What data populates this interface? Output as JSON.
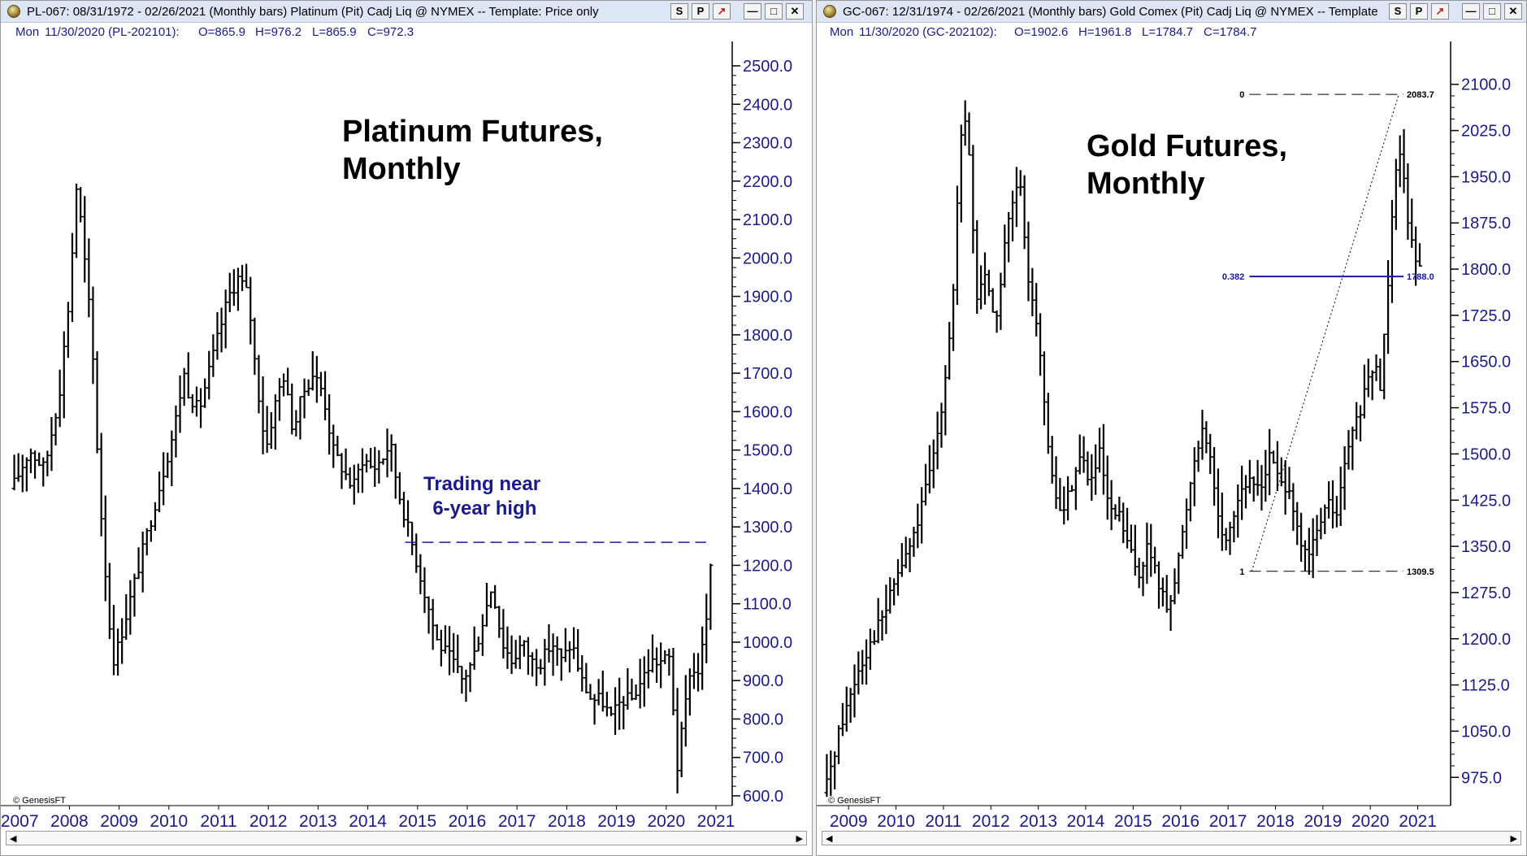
{
  "left": {
    "window_title": "PL-067:  08/31/1972 - 02/26/2021  (Monthly bars)   Platinum (Pit) Cadj Liq @ NYMEX  --  Template: Price only",
    "info": {
      "day": "Mon",
      "bar": "11/30/2020 (PL-202101):",
      "open": "O=865.9",
      "high": "H=976.2",
      "low": "L=865.9",
      "close": "C=972.3"
    },
    "copyright": "© GenesisFT"
  },
  "right": {
    "window_title": "GC-067:  12/31/1974 - 02/26/2021  (Monthly bars)   Gold Comex (Pit) Cadj Liq @ NYMEX  --  Template",
    "info": {
      "day": "Mon",
      "bar": "11/30/2020 (GC-202102):",
      "open": "O=1902.6",
      "high": "H=1961.8",
      "low": "L=1784.7",
      "close": "C=1784.7"
    },
    "copyright": "© GenesisFT"
  },
  "buttons": {
    "s": "S",
    "p": "P",
    "flag": "↗",
    "min": "—",
    "max": "□",
    "close": "✕"
  },
  "chart_data": [
    {
      "type": "ohlc",
      "title": "Platinum Futures,\nMonthly",
      "annotation": "Trading near\n 6-year high",
      "ylim": [
        600,
        2500
      ],
      "y_ticks": [
        600,
        700,
        800,
        900,
        1000,
        1100,
        1200,
        1300,
        1400,
        1500,
        1600,
        1700,
        1800,
        1900,
        2000,
        2100,
        2200,
        2300,
        2400,
        2500
      ],
      "y_tick_labels": [
        "600.0",
        "700.0",
        "800.0",
        "900.0",
        "1000.0",
        "1100.0",
        "1200.0",
        "1300.0",
        "1400.0",
        "1500.0",
        "1600.0",
        "1700.0",
        "1800.0",
        "1900.0",
        "2000.0",
        "2100.0",
        "2200.0",
        "2300.0",
        "2400.0",
        "2500.0"
      ],
      "x_labels": [
        "2007",
        "2008",
        "2009",
        "2010",
        "2011",
        "2012",
        "2013",
        "2014",
        "2015",
        "2016",
        "2017",
        "2018",
        "2019",
        "2020",
        "2021"
      ],
      "x_start": 2006.85,
      "x_end": 2021.0,
      "reference_line": {
        "value": 1260,
        "from": 2014.75,
        "to": 2020.8
      },
      "path": [
        [
          2006.85,
          1400
        ],
        [
          2007.2,
          1500
        ],
        [
          2007.5,
          1450
        ],
        [
          2007.8,
          1650
        ],
        [
          2008.0,
          1900
        ],
        [
          2008.15,
          2200
        ],
        [
          2008.3,
          2000
        ],
        [
          2008.45,
          1800
        ],
        [
          2008.6,
          1400
        ],
        [
          2008.8,
          1050
        ],
        [
          2008.9,
          950
        ],
        [
          2009.1,
          1050
        ],
        [
          2009.3,
          1150
        ],
        [
          2009.5,
          1250
        ],
        [
          2009.7,
          1350
        ],
        [
          2009.9,
          1450
        ],
        [
          2010.1,
          1550
        ],
        [
          2010.3,
          1700
        ],
        [
          2010.4,
          1650
        ],
        [
          2010.6,
          1600
        ],
        [
          2010.8,
          1700
        ],
        [
          2011.0,
          1800
        ],
        [
          2011.2,
          1900
        ],
        [
          2011.4,
          1950
        ],
        [
          2011.6,
          1900
        ],
        [
          2011.75,
          1700
        ],
        [
          2011.95,
          1500
        ],
        [
          2012.1,
          1600
        ],
        [
          2012.3,
          1700
        ],
        [
          2012.5,
          1550
        ],
        [
          2012.7,
          1650
        ],
        [
          2012.9,
          1700
        ],
        [
          2013.1,
          1650
        ],
        [
          2013.3,
          1500
        ],
        [
          2013.5,
          1450
        ],
        [
          2013.7,
          1400
        ],
        [
          2013.9,
          1480
        ],
        [
          2014.1,
          1450
        ],
        [
          2014.3,
          1480
        ],
        [
          2014.45,
          1520
        ],
        [
          2014.6,
          1400
        ],
        [
          2014.8,
          1300
        ],
        [
          2015.1,
          1150
        ],
        [
          2015.4,
          1000
        ],
        [
          2015.7,
          950
        ],
        [
          2015.9,
          900
        ],
        [
          2016.1,
          950
        ],
        [
          2016.3,
          1050
        ],
        [
          2016.5,
          1150
        ],
        [
          2016.7,
          1000
        ],
        [
          2016.9,
          950
        ],
        [
          2017.1,
          1000
        ],
        [
          2017.3,
          950
        ],
        [
          2017.5,
          950
        ],
        [
          2017.7,
          1000
        ],
        [
          2017.9,
          950
        ],
        [
          2018.1,
          1000
        ],
        [
          2018.3,
          900
        ],
        [
          2018.5,
          850
        ],
        [
          2018.7,
          850
        ],
        [
          2018.9,
          800
        ],
        [
          2019.1,
          850
        ],
        [
          2019.3,
          850
        ],
        [
          2019.5,
          900
        ],
        [
          2019.7,
          950
        ],
        [
          2019.9,
          950
        ],
        [
          2020.1,
          960
        ],
        [
          2020.2,
          650
        ],
        [
          2020.4,
          850
        ],
        [
          2020.5,
          950
        ],
        [
          2020.6,
          900
        ],
        [
          2020.75,
          1000
        ],
        [
          2020.85,
          1100
        ],
        [
          2020.9,
          1200
        ]
      ]
    },
    {
      "type": "ohlc",
      "title": "Gold Futures,\nMonthly",
      "ylim": [
        945,
        2130
      ],
      "y_ticks": [
        975,
        1050,
        1125,
        1200,
        1275,
        1350,
        1425,
        1500,
        1575,
        1650,
        1725,
        1800,
        1875,
        1950,
        2025,
        2100
      ],
      "y_tick_labels": [
        "975.0",
        "1050.0",
        "1125.0",
        "1200.0",
        "1275.0",
        "1350.0",
        "1425.0",
        "1500.0",
        "1575.0",
        "1650.0",
        "1725.0",
        "1800.0",
        "1875.0",
        "1950.0",
        "2025.0",
        "2100.0"
      ],
      "x_labels": [
        "2009",
        "2010",
        "2011",
        "2012",
        "2013",
        "2014",
        "2015",
        "2016",
        "2017",
        "2018",
        "2019",
        "2020",
        "2021"
      ],
      "x_start": 2008.5,
      "x_end": 2021.35,
      "fib": {
        "high": 2083.7,
        "high_label": "2083.7",
        "high_ratio": "0",
        "low": 1309.5,
        "low_label": "1309.5",
        "low_ratio": "1",
        "retrace": 1788.0,
        "retrace_label": "1788.0",
        "retrace_ratio": "0.382",
        "x_from": 2017.45,
        "x_to": 2020.7,
        "low_x": 2017.5,
        "high_x": 2020.6
      },
      "path": [
        [
          2008.5,
          950
        ],
        [
          2008.8,
          1050
        ],
        [
          2009.0,
          1100
        ],
        [
          2009.2,
          1150
        ],
        [
          2009.5,
          1200
        ],
        [
          2009.8,
          1250
        ],
        [
          2010.0,
          1300
        ],
        [
          2010.3,
          1350
        ],
        [
          2010.5,
          1400
        ],
        [
          2010.8,
          1500
        ],
        [
          2011.0,
          1600
        ],
        [
          2011.2,
          1750
        ],
        [
          2011.35,
          2000
        ],
        [
          2011.5,
          2050
        ],
        [
          2011.7,
          1750
        ],
        [
          2011.9,
          1800
        ],
        [
          2012.1,
          1700
        ],
        [
          2012.3,
          1850
        ],
        [
          2012.45,
          1900
        ],
        [
          2012.6,
          1950
        ],
        [
          2012.75,
          1800
        ],
        [
          2012.9,
          1750
        ],
        [
          2013.0,
          1700
        ],
        [
          2013.15,
          1550
        ],
        [
          2013.3,
          1450
        ],
        [
          2013.5,
          1400
        ],
        [
          2013.7,
          1450
        ],
        [
          2013.9,
          1500
        ],
        [
          2014.1,
          1450
        ],
        [
          2014.3,
          1500
        ],
        [
          2014.5,
          1400
        ],
        [
          2014.7,
          1400
        ],
        [
          2014.9,
          1350
        ],
        [
          2015.1,
          1300
        ],
        [
          2015.3,
          1350
        ],
        [
          2015.5,
          1300
        ],
        [
          2015.7,
          1250
        ],
        [
          2015.9,
          1300
        ],
        [
          2016.1,
          1400
        ],
        [
          2016.3,
          1500
        ],
        [
          2016.5,
          1550
        ],
        [
          2016.7,
          1450
        ],
        [
          2016.9,
          1350
        ],
        [
          2017.1,
          1400
        ],
        [
          2017.3,
          1450
        ],
        [
          2017.5,
          1450
        ],
        [
          2017.7,
          1450
        ],
        [
          2017.9,
          1500
        ],
        [
          2018.1,
          1450
        ],
        [
          2018.3,
          1450
        ],
        [
          2018.5,
          1350
        ],
        [
          2018.7,
          1330
        ],
        [
          2018.9,
          1380
        ],
        [
          2019.1,
          1420
        ],
        [
          2019.3,
          1400
        ],
        [
          2019.5,
          1500
        ],
        [
          2019.7,
          1550
        ],
        [
          2019.9,
          1600
        ],
        [
          2020.1,
          1650
        ],
        [
          2020.2,
          1600
        ],
        [
          2020.35,
          1750
        ],
        [
          2020.5,
          1950
        ],
        [
          2020.6,
          2000
        ],
        [
          2020.7,
          1950
        ],
        [
          2020.8,
          1880
        ],
        [
          2020.9,
          1850
        ],
        [
          2021.0,
          1800
        ]
      ]
    }
  ]
}
